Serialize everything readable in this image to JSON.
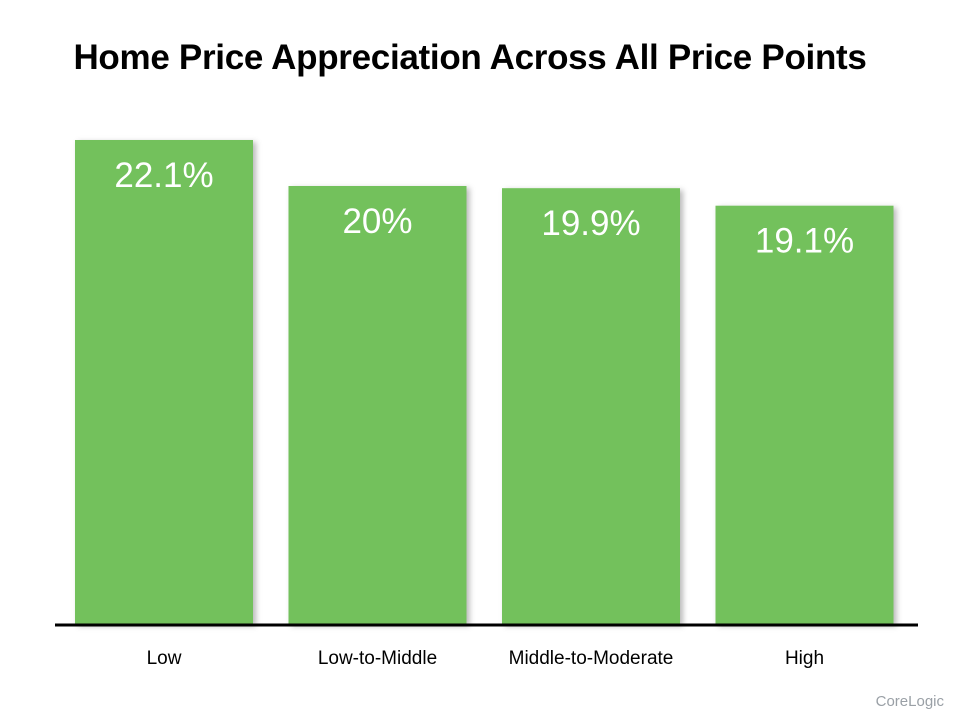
{
  "source": "CoreLogic",
  "chart_data": {
    "type": "bar",
    "title": "Home Price Appreciation Across All Price Points",
    "categories": [
      "Low",
      "Low-to-Middle",
      "Middle-to-Moderate",
      "High"
    ],
    "values": [
      22.1,
      20,
      19.9,
      19.1
    ],
    "data_labels": [
      "22.1%",
      "20%",
      "19.9%",
      "19.1%"
    ],
    "xlabel": "",
    "ylabel": "",
    "ylim": [
      0,
      22.1
    ],
    "grid": false,
    "legend": "none",
    "bar_color": "#73c15b",
    "label_color": "#ffffff",
    "axis_color": "#000000"
  }
}
